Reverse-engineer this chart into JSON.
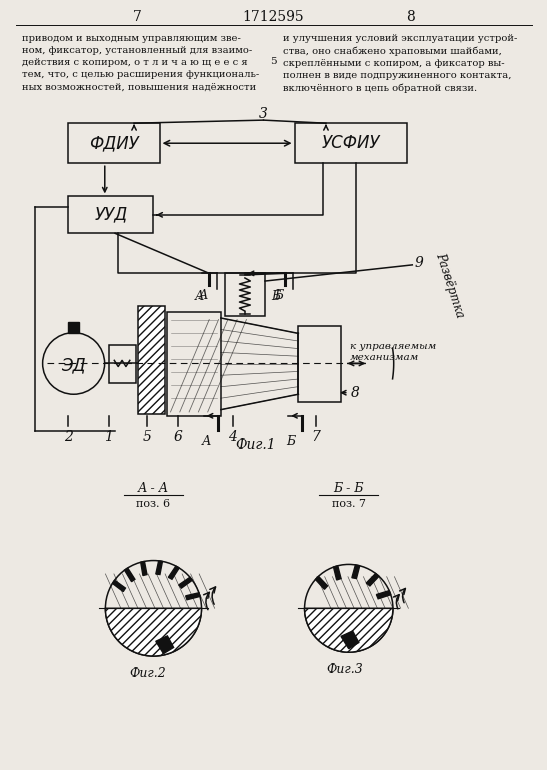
{
  "bg_color": "#ede9e3",
  "lc": "#111111",
  "page_left": "7",
  "page_center": "1712595",
  "page_right": "8",
  "text_left": "приводом и выходным управляющим зве-\nном, фиксатор, установленный для взаимо-\nдействия с копиром, о т л и ч а ю щ е е с я\nтем, что, с целью расширения функциональ-\nных возможностей, повышения надёжности",
  "text_right": "и улучшения условий эксплуатации устрой-\nства, оно снабжено храповыми шайбами,\nскреплёнными с копиром, а фиксатор вы-\nполнен в виде подпружиненного контакта,\nвключённого в цепь обратной связи."
}
